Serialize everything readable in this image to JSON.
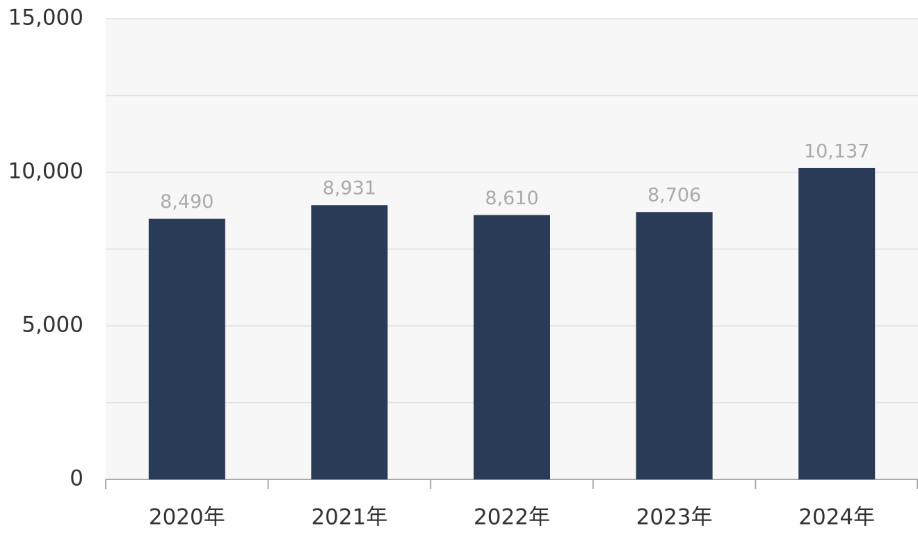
{
  "chart_data": {
    "type": "bar",
    "categories": [
      "2020年",
      "2021年",
      "2022年",
      "2023年",
      "2024年"
    ],
    "values": [
      8490,
      8931,
      8610,
      8706,
      10137
    ],
    "value_labels": [
      "8,490",
      "8,931",
      "8,610",
      "8,706",
      "10,137"
    ],
    "color": "#293b56",
    "ylim": [
      0,
      15000
    ],
    "yticks": [
      0,
      {
        "value": 5000,
        "label": "5,000"
      },
      {
        "value": 10000,
        "label": "10,000"
      },
      {
        "value": 15000,
        "label": "15,000"
      }
    ],
    "yminorticks": [
      2500,
      7500,
      12500
    ],
    "grid": true
  }
}
